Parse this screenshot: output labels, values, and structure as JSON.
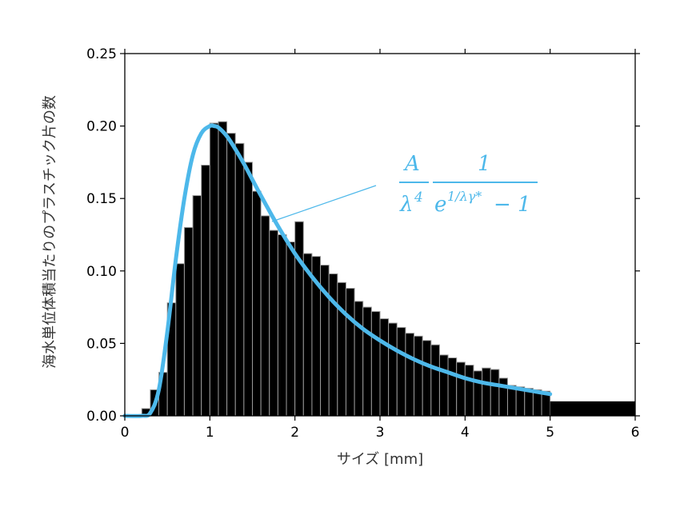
{
  "chart_data": {
    "type": "bar",
    "xlabel": "サイズ [mm]",
    "ylabel": "海水単位体積当たりのプラスチック片の数",
    "xlim": [
      0,
      6
    ],
    "ylim": [
      0,
      0.25
    ],
    "x_ticks": [
      "0",
      "1",
      "2",
      "3",
      "4",
      "5",
      "6"
    ],
    "y_ticks": [
      "0.00",
      "0.05",
      "0.10",
      "0.15",
      "0.20",
      "0.25"
    ],
    "grid": false,
    "bin_width": 0.1,
    "histogram": {
      "bin_starts": [
        0.2,
        0.3,
        0.4,
        0.5,
        0.6,
        0.7,
        0.8,
        0.9,
        1.0,
        1.1,
        1.2,
        1.3,
        1.4,
        1.5,
        1.6,
        1.7,
        1.8,
        1.9,
        2.0,
        2.1,
        2.2,
        2.3,
        2.4,
        2.5,
        2.6,
        2.7,
        2.8,
        2.9,
        3.0,
        3.1,
        3.2,
        3.3,
        3.4,
        3.5,
        3.6,
        3.7,
        3.8,
        3.9,
        4.0,
        4.1,
        4.2,
        4.3,
        4.4,
        4.5,
        4.6,
        4.7,
        4.8,
        4.9
      ],
      "values": [
        0.005,
        0.018,
        0.03,
        0.078,
        0.105,
        0.13,
        0.152,
        0.173,
        0.202,
        0.203,
        0.195,
        0.188,
        0.175,
        0.155,
        0.138,
        0.128,
        0.125,
        0.12,
        0.134,
        0.112,
        0.11,
        0.104,
        0.098,
        0.092,
        0.088,
        0.079,
        0.075,
        0.072,
        0.067,
        0.064,
        0.061,
        0.057,
        0.055,
        0.052,
        0.049,
        0.042,
        0.04,
        0.037,
        0.035,
        0.031,
        0.033,
        0.032,
        0.026,
        0.021,
        0.02,
        0.019,
        0.018,
        0.017
      ]
    },
    "tail_bar": {
      "x_start": 5.0,
      "x_end": 6.0,
      "value": 0.01
    },
    "series": [
      {
        "name": "fit",
        "color": "#4db8ea",
        "x": [
          0.0,
          0.2,
          0.3,
          0.4,
          0.5,
          0.6,
          0.7,
          0.8,
          0.9,
          1.0,
          1.05,
          1.1,
          1.2,
          1.3,
          1.4,
          1.5,
          1.6,
          1.8,
          2.0,
          2.2,
          2.4,
          2.6,
          2.8,
          3.0,
          3.2,
          3.4,
          3.6,
          3.8,
          4.0,
          4.2,
          4.4,
          4.6,
          4.8,
          5.0
        ],
        "y": [
          0.0,
          0.0,
          0.002,
          0.018,
          0.058,
          0.108,
          0.15,
          0.18,
          0.195,
          0.2,
          0.2,
          0.199,
          0.193,
          0.184,
          0.174,
          0.163,
          0.152,
          0.131,
          0.112,
          0.096,
          0.082,
          0.07,
          0.06,
          0.052,
          0.045,
          0.039,
          0.034,
          0.03,
          0.026,
          0.023,
          0.021,
          0.019,
          0.017,
          0.015
        ]
      }
    ],
    "annotation": {
      "numerator_left": "A",
      "lambda": "λ",
      "lambda_exp": "4",
      "numerator_right": "1",
      "base_e": "e",
      "exponent": "1/λγ*",
      "minus_one": "− 1",
      "color": "#4db8ea"
    }
  }
}
